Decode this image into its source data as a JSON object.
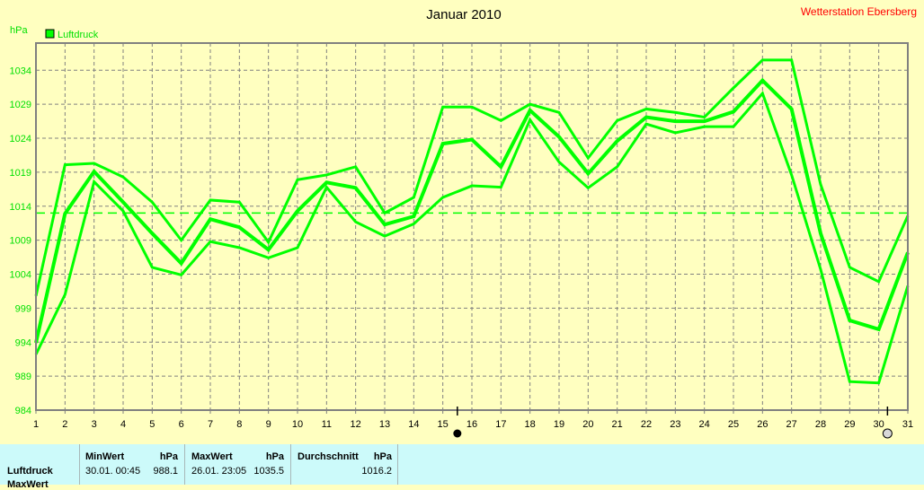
{
  "chart_data": {
    "type": "line",
    "title": "Januar 2010",
    "station": "Wetterstation Ebersberg",
    "ylabel": "hPa",
    "legend": [
      {
        "label": "Luftdruck",
        "color": "#00ff00"
      }
    ],
    "legend_placement": "top-left",
    "ylim": [
      984,
      1038
    ],
    "yticks": [
      984,
      989,
      994,
      999,
      1004,
      1009,
      1014,
      1019,
      1024,
      1029,
      1034
    ],
    "x": [
      1,
      2,
      3,
      4,
      5,
      6,
      7,
      8,
      9,
      10,
      11,
      12,
      13,
      14,
      15,
      16,
      17,
      18,
      19,
      20,
      21,
      22,
      23,
      24,
      25,
      26,
      27,
      28,
      29,
      30,
      31
    ],
    "grid": true,
    "series": [
      {
        "values": [
          1000.8,
          1020.1,
          1020.3,
          1018.3,
          1014.6,
          1009.0,
          1014.9,
          1014.6,
          1008.7,
          1017.9,
          1018.6,
          1019.8,
          1013.0,
          1015.3,
          1028.6,
          1028.6,
          1026.6,
          1029.0,
          1027.8,
          1021.1,
          1026.6,
          1028.3,
          1027.8,
          1027.1,
          1031.4,
          1035.5,
          1035.5,
          1017.2,
          1005.0,
          1002.9,
          1012.6
        ]
      },
      {
        "values": [
          993.9,
          1012.9,
          1019.1,
          1014.6,
          1010.0,
          1005.6,
          1012.1,
          1010.9,
          1007.6,
          1013.3,
          1017.5,
          1016.7,
          1011.3,
          1012.5,
          1023.2,
          1023.8,
          1019.8,
          1028.1,
          1024.2,
          1018.8,
          1023.6,
          1027.1,
          1026.5,
          1026.5,
          1027.9,
          1032.5,
          1028.3,
          1010.0,
          997.2,
          995.9,
          1007.2
        ]
      },
      {
        "values": [
          992.2,
          1001.0,
          1017.6,
          1013.3,
          1005.0,
          1003.9,
          1008.8,
          1007.9,
          1006.4,
          1007.9,
          1016.8,
          1011.7,
          1009.6,
          1011.4,
          1015.3,
          1017.0,
          1016.8,
          1026.7,
          1020.5,
          1016.7,
          1019.8,
          1026.1,
          1024.8,
          1025.7,
          1025.7,
          1030.6,
          1018.6,
          1004.7,
          988.2,
          988.0,
          1002.3
        ]
      }
    ],
    "reference_line": 1013.0,
    "markers": [
      {
        "x": 15.5,
        "style": "filled"
      },
      {
        "x": 30.3,
        "style": "hollow"
      }
    ],
    "colors": {
      "line": "#00ff00",
      "title": "#000000",
      "station": "#ff0000",
      "grid": "#808080",
      "background": "#ffffc0"
    }
  },
  "info": {
    "row_label": "Luftdruck",
    "row2_label": "MaxWert",
    "min": {
      "header": "MinWert",
      "unit": "hPa",
      "datetime": "30.01.  00:45",
      "value": "988.1"
    },
    "max": {
      "header": "MaxWert",
      "unit": "hPa",
      "datetime": "26.01.  23:05",
      "value": "1035.5"
    },
    "avg": {
      "header": "Durchschnitt",
      "unit": "hPa",
      "value": "1016.2"
    }
  }
}
